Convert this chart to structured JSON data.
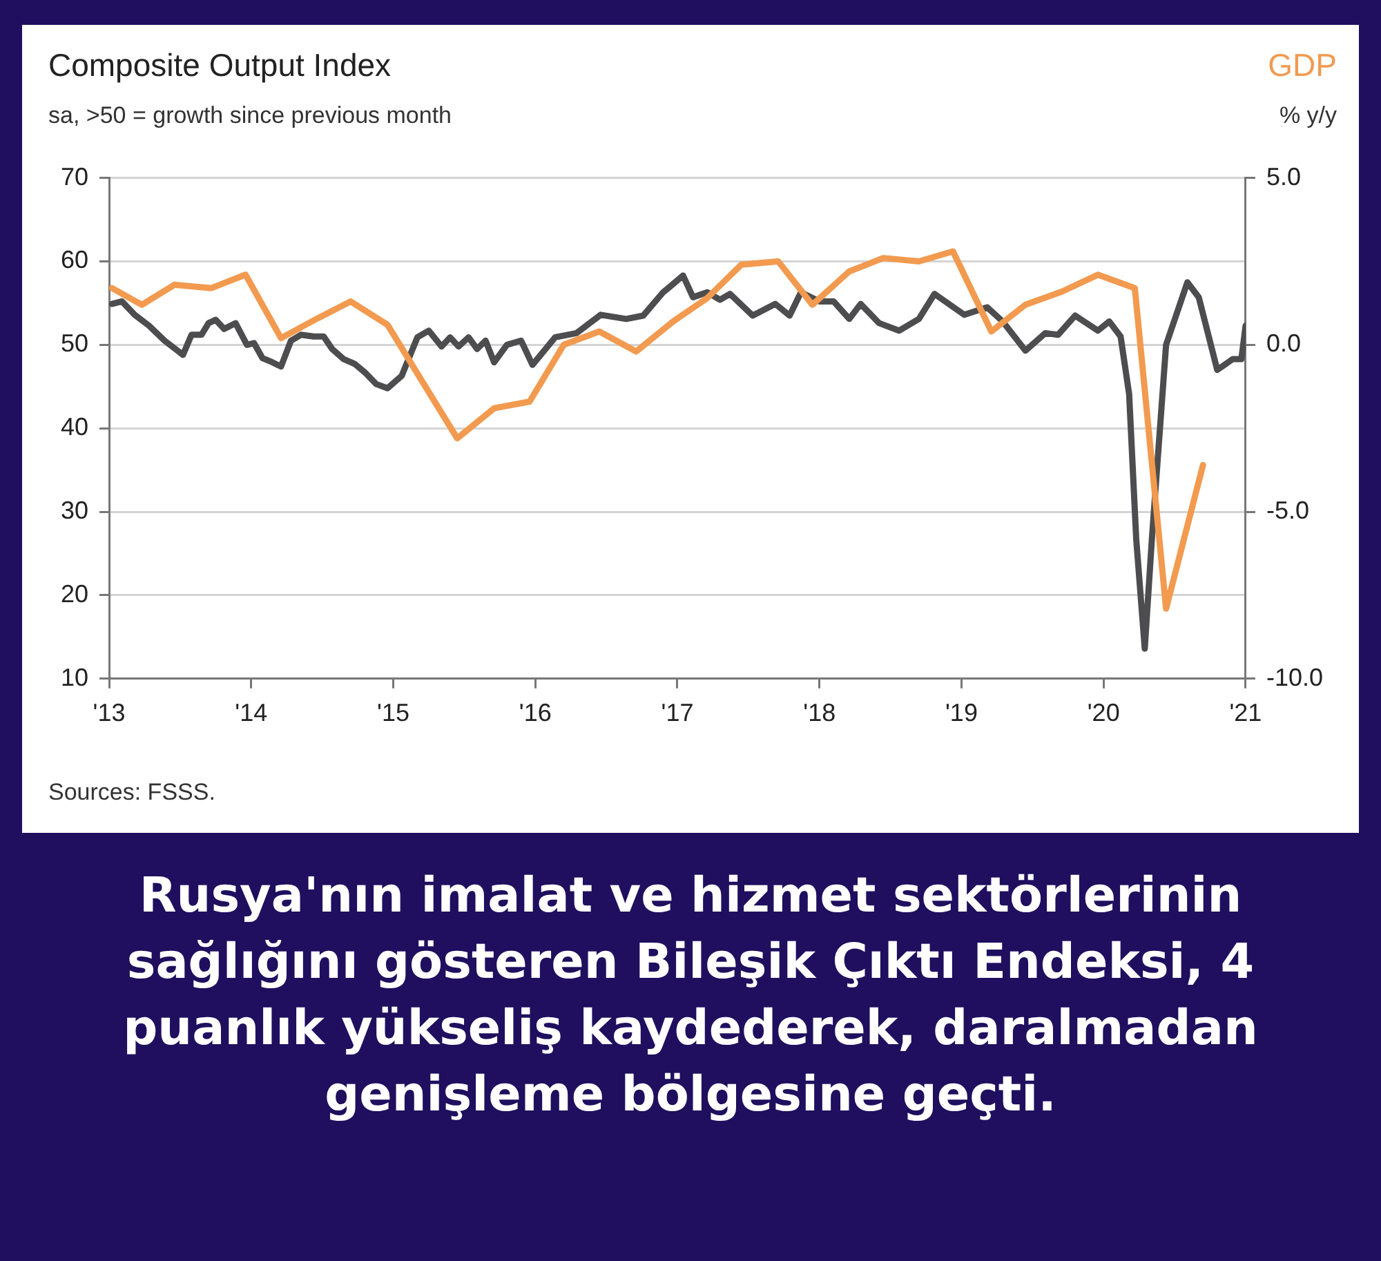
{
  "chart_data": {
    "type": "line",
    "title": "Composite Output Index",
    "subtitle": "sa, >50 = growth since previous month",
    "y2label": "% y/y",
    "annotations": [
      "Sources: FSSS.",
      "Rusya'nın imalat ve hizmet sektörlerinin sağlığını gösteren Bileşik Çıktı Endeksi, 4 puanlık yükseliş kaydederek, daralmadan genişleme bölgesine geçti."
    ],
    "xlim": [
      2013,
      2021
    ],
    "xticks": [
      {
        "value": 2013,
        "label": "'13"
      },
      {
        "value": 2014,
        "label": "'14"
      },
      {
        "value": 2015,
        "label": "'15"
      },
      {
        "value": 2016,
        "label": "'16"
      },
      {
        "value": 2017,
        "label": "'17"
      },
      {
        "value": 2018,
        "label": "'18"
      },
      {
        "value": 2019,
        "label": "'19"
      },
      {
        "value": 2020,
        "label": "'20"
      },
      {
        "value": 2021,
        "label": "'21"
      }
    ],
    "ylim": [
      10,
      70
    ],
    "yticks": [
      10,
      20,
      30,
      40,
      50,
      60,
      70
    ],
    "y2lim": [
      -10,
      5
    ],
    "y2ticks": [
      {
        "value": -10,
        "label": "-10.0"
      },
      {
        "value": -5,
        "label": "-5.0"
      },
      {
        "value": 0,
        "label": "0.0"
      },
      {
        "value": 5,
        "label": "5.0"
      }
    ],
    "grid": "y",
    "legend": false,
    "marker": "none",
    "line_style": "solid",
    "series": [
      {
        "color": "#4d4d4f",
        "x": [
          2013.02,
          2013.09,
          2013.18,
          2013.28,
          2013.39,
          2013.52,
          2013.58,
          2013.65,
          2013.7,
          2013.75,
          2013.81,
          2013.89,
          2013.97,
          2014.02,
          2014.08,
          2014.15,
          2014.21,
          2014.28,
          2014.35,
          2014.44,
          2014.51,
          2014.57,
          2014.65,
          2014.73,
          2014.8,
          2014.88,
          2014.96,
          2015.06,
          2015.17,
          2015.25,
          2015.34,
          2015.4,
          2015.46,
          2015.53,
          2015.59,
          2015.65,
          2015.71,
          2015.8,
          2015.9,
          2015.98,
          2016.14,
          2016.29,
          2016.46,
          2016.64,
          2016.76,
          2016.9,
          2016.95,
          2017.04,
          2017.11,
          2017.21,
          2017.3,
          2017.37,
          2017.53,
          2017.69,
          2017.79,
          2017.87,
          2018.0,
          2018.1,
          2018.21,
          2018.29,
          2018.42,
          2018.56,
          2018.7,
          2018.81,
          2019.02,
          2019.18,
          2019.29,
          2019.45,
          2019.59,
          2019.68,
          2019.8,
          2019.96,
          2020.04,
          2020.12,
          2020.18,
          2020.23,
          2020.29,
          2020.34,
          2020.44,
          2020.59,
          2020.67,
          2020.8,
          2020.91,
          2020.97,
          2021.0
        ],
        "values": [
          54.9,
          55.2,
          53.6,
          52.3,
          50.5,
          48.8,
          51.2,
          51.2,
          52.6,
          53,
          51.9,
          52.6,
          50,
          50.2,
          48.4,
          47.9,
          47.4,
          50.5,
          51.2,
          51,
          51,
          49.5,
          48.3,
          47.7,
          46.7,
          45.3,
          44.8,
          46.3,
          50.9,
          51.7,
          49.8,
          50.9,
          49.8,
          50.9,
          49.5,
          50.5,
          47.9,
          50,
          50.5,
          47.6,
          50.9,
          51.4,
          53.6,
          53.1,
          53.5,
          56.3,
          57,
          58.3,
          55.7,
          56.3,
          55.4,
          56.1,
          53.5,
          54.9,
          53.5,
          56.3,
          55.2,
          55.2,
          53.1,
          54.9,
          52.6,
          51.7,
          53.1,
          56.1,
          53.6,
          54.5,
          52.8,
          49.3,
          51.4,
          51.2,
          53.5,
          51.7,
          52.8,
          51,
          44.1,
          26.7,
          13.6,
          26.7,
          50,
          57.5,
          55.7,
          47,
          48.3,
          48.3,
          52.3
        ]
      },
      {
        "name": "GDP",
        "color": "#f29a4f",
        "axis": "y2",
        "x": [
          2013.02,
          2013.23,
          2013.46,
          2013.72,
          2013.96,
          2014.21,
          2014.47,
          2014.7,
          2014.96,
          2015.19,
          2015.45,
          2015.71,
          2015.96,
          2016.2,
          2016.45,
          2016.71,
          2016.97,
          2017.21,
          2017.45,
          2017.71,
          2017.95,
          2018.21,
          2018.45,
          2018.7,
          2018.94,
          2019.21,
          2019.45,
          2019.71,
          2019.96,
          2020.22,
          2020.44,
          2020.7
        ],
        "values": [
          1.7,
          1.2,
          1.8,
          1.7,
          2.1,
          0.2,
          0.8,
          1.3,
          0.6,
          -1.0,
          -2.8,
          -1.9,
          -1.7,
          0,
          0.4,
          -0.2,
          0.7,
          1.4,
          2.4,
          2.5,
          1.2,
          2.2,
          2.6,
          2.5,
          2.8,
          0.4,
          1.2,
          1.6,
          2.1,
          1.7,
          -7.9,
          -3.6
        ]
      }
    ]
  }
}
